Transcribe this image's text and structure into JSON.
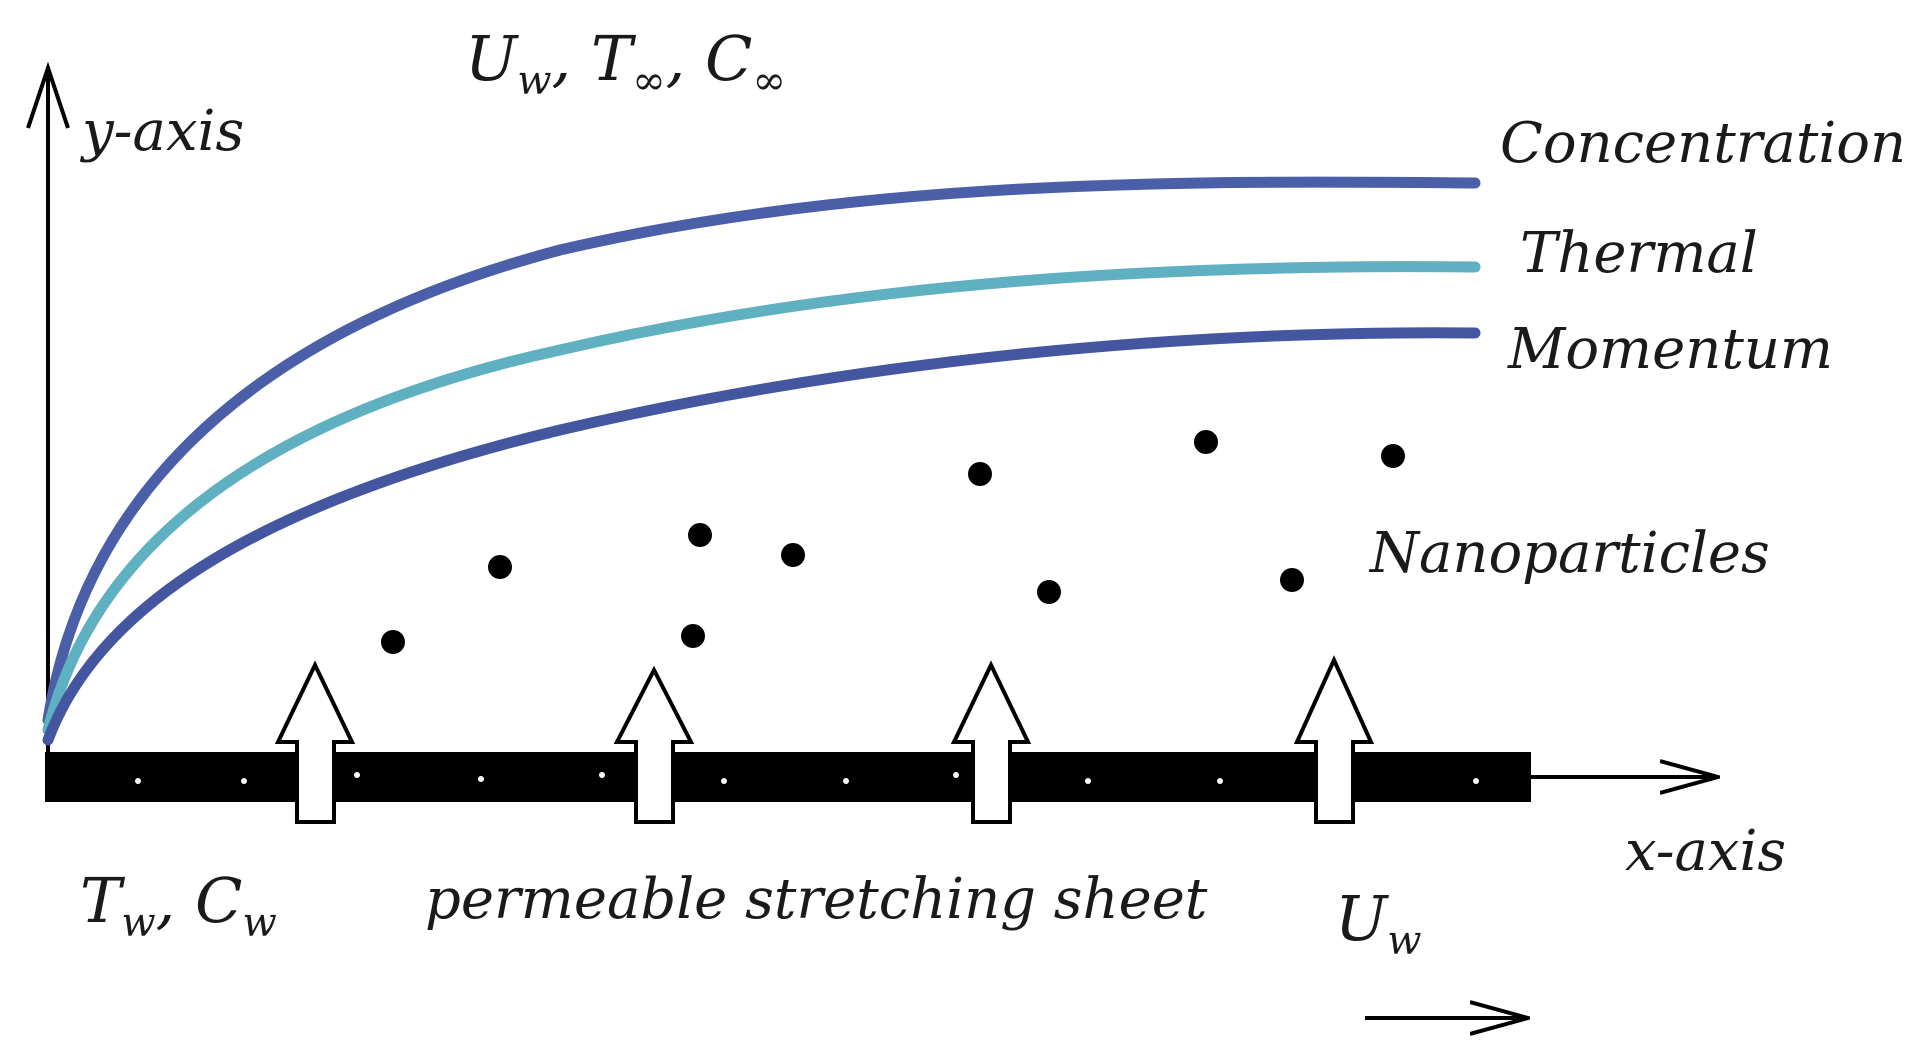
{
  "top_label": {
    "U": "U",
    "U_sub": "w",
    "sep1": ", ",
    "T": "T",
    "T_sub": "∞",
    "sep2": ", ",
    "C": "C",
    "C_sub": "∞"
  },
  "y_axis_label": "y-axis",
  "x_axis_label": "x-axis",
  "curve_labels": {
    "concentration": "Concentration",
    "thermal": "Thermal",
    "momentum": "Momentum"
  },
  "nanoparticles_label": "Nanoparticles",
  "sheet_label": "permeable stretching sheet",
  "wall_label": {
    "T": "T",
    "T_sub": "w",
    "sep": ", ",
    "C": "C",
    "C_sub": "w"
  },
  "stretch_label": {
    "U": "U",
    "U_sub": "w"
  },
  "colors": {
    "concentration": "#4a5fa8",
    "thermal": "#5fb0c0",
    "momentum": "#4556a0",
    "sheet": "#000000"
  }
}
